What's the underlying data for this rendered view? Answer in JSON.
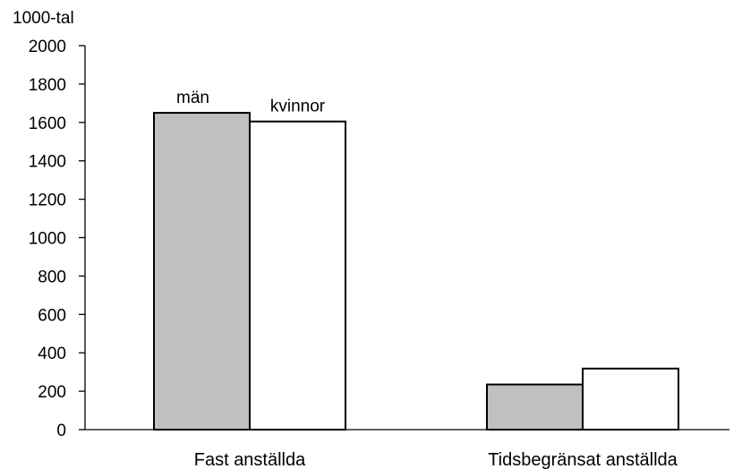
{
  "chart_data": {
    "type": "bar",
    "title": "",
    "ylabel": "1000-tal",
    "xlabel": "",
    "categories": [
      "Fast anställda",
      "Tidsbegränsat anställda"
    ],
    "series": [
      {
        "name": "män",
        "values": [
          1650,
          235
        ],
        "color": "#c0c0c0"
      },
      {
        "name": "kvinnor",
        "values": [
          1605,
          318
        ],
        "color": "#ffffff"
      }
    ],
    "ylim": [
      0,
      2000
    ],
    "yticks": [
      "0",
      "200",
      "400",
      "600",
      "800",
      "1000",
      "1200",
      "1400",
      "1600",
      "1800",
      "2000"
    ],
    "grid": false,
    "legend": "labels above first category bars"
  }
}
